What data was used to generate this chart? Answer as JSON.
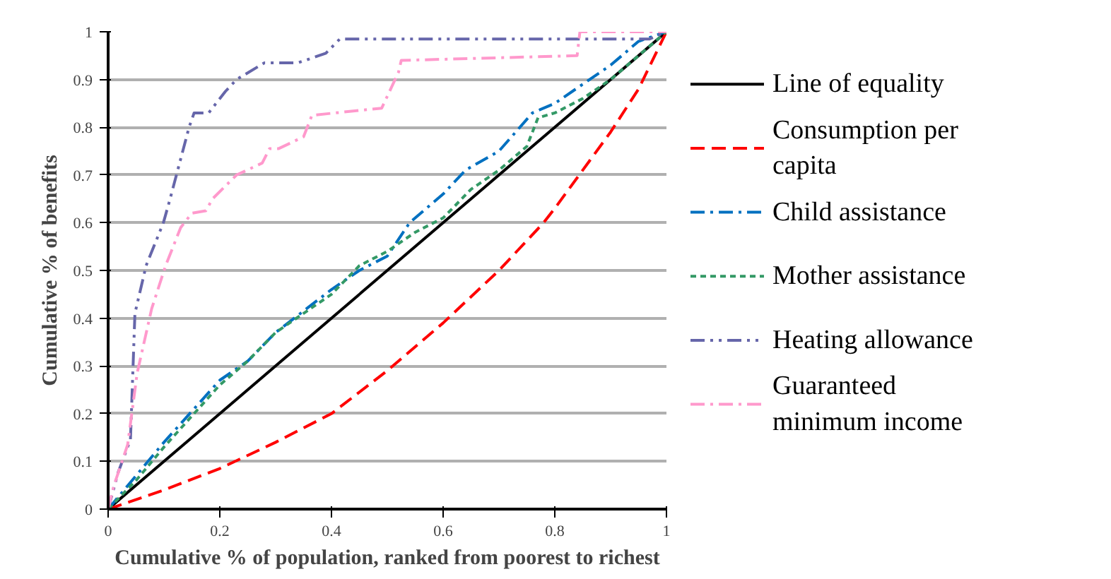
{
  "chart_data": {
    "type": "line",
    "xlabel": "Cumulative % of population, ranked from poorest to richest",
    "ylabel": "Cumulative % of benefits",
    "xlim": [
      0,
      1
    ],
    "ylim": [
      0,
      1
    ],
    "xticks": [
      0,
      0.2,
      0.4,
      0.6,
      0.8,
      1
    ],
    "yticks": [
      0,
      0.1,
      0.2,
      0.3,
      0.4,
      0.5,
      0.6,
      0.7,
      0.8,
      0.9,
      1
    ],
    "grid": "y",
    "legend": "right",
    "series": [
      {
        "name": "Line of equality",
        "color": "#000000",
        "line_style": "solid",
        "x": [
          0,
          1
        ],
        "values": [
          0,
          1
        ]
      },
      {
        "name": "Consumption per capita",
        "color": "#ff0000",
        "line_style": "dashed",
        "x": [
          0,
          0.1,
          0.2,
          0.3,
          0.4,
          0.5,
          0.6,
          0.7,
          0.78,
          0.8,
          0.9,
          0.95,
          1
        ],
        "values": [
          0,
          0.04,
          0.085,
          0.14,
          0.2,
          0.29,
          0.39,
          0.5,
          0.6,
          0.63,
          0.79,
          0.88,
          1
        ]
      },
      {
        "name": "Child assistance",
        "color": "#0070c0",
        "line_style": "dashdot",
        "x": [
          0,
          0.05,
          0.1,
          0.2,
          0.25,
          0.3,
          0.4,
          0.45,
          0.5,
          0.54,
          0.6,
          0.64,
          0.7,
          0.76,
          0.8,
          0.85,
          0.9,
          0.95,
          1
        ],
        "values": [
          0,
          0.07,
          0.14,
          0.27,
          0.31,
          0.37,
          0.46,
          0.5,
          0.53,
          0.6,
          0.66,
          0.71,
          0.75,
          0.83,
          0.85,
          0.89,
          0.93,
          0.98,
          1
        ]
      },
      {
        "name": "Mother assistance",
        "color": "#339966",
        "line_style": "dotted",
        "x": [
          0,
          0.05,
          0.1,
          0.2,
          0.25,
          0.3,
          0.4,
          0.45,
          0.5,
          0.55,
          0.6,
          0.65,
          0.7,
          0.75,
          0.77,
          0.8,
          0.85,
          0.9,
          0.95,
          1
        ],
        "values": [
          0,
          0.06,
          0.13,
          0.26,
          0.31,
          0.37,
          0.45,
          0.51,
          0.54,
          0.58,
          0.61,
          0.67,
          0.71,
          0.76,
          0.82,
          0.83,
          0.86,
          0.9,
          0.95,
          1
        ]
      },
      {
        "name": "Heating allowance",
        "color": "#6666aa",
        "line_style": "dashdotdot",
        "x": [
          0,
          0.018,
          0.04,
          0.048,
          0.068,
          0.099,
          0.111,
          0.145,
          0.154,
          0.18,
          0.21,
          0.23,
          0.28,
          0.34,
          0.39,
          0.415,
          0.97,
          1
        ],
        "values": [
          0,
          0.077,
          0.146,
          0.41,
          0.51,
          0.6,
          0.65,
          0.8,
          0.83,
          0.83,
          0.875,
          0.9,
          0.935,
          0.935,
          0.955,
          0.985,
          0.985,
          1
        ]
      },
      {
        "name": "Guaranteed minimum income",
        "color": "#ff99cc",
        "line_style": "dashdot",
        "x": [
          0,
          0.01,
          0.035,
          0.052,
          0.078,
          0.103,
          0.13,
          0.15,
          0.175,
          0.187,
          0.23,
          0.276,
          0.289,
          0.305,
          0.35,
          0.365,
          0.49,
          0.52,
          0.525,
          0.84,
          0.845,
          1
        ],
        "values": [
          0,
          0.048,
          0.135,
          0.285,
          0.42,
          0.51,
          0.59,
          0.62,
          0.625,
          0.65,
          0.7,
          0.725,
          0.755,
          0.755,
          0.78,
          0.825,
          0.84,
          0.915,
          0.94,
          0.95,
          1,
          1
        ]
      }
    ]
  }
}
